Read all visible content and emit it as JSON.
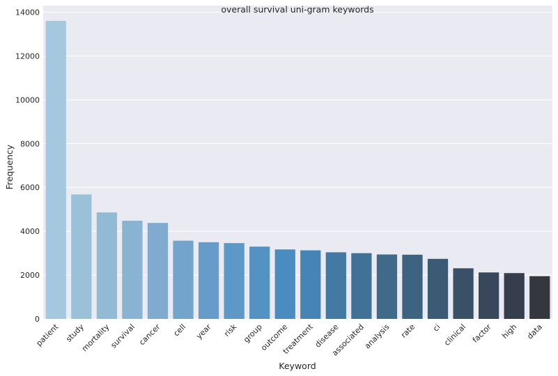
{
  "chart_data": {
    "type": "bar",
    "title": "overall survival uni-gram keywords",
    "xlabel": "Keyword",
    "ylabel": "Frequency",
    "ylim": [
      0,
      14300
    ],
    "yticks": [
      0,
      2000,
      4000,
      6000,
      8000,
      10000,
      12000,
      14000
    ],
    "grid": true,
    "categories": [
      "patient",
      "study",
      "mortality",
      "survival",
      "cancer",
      "cell",
      "year",
      "risk",
      "group",
      "outcome",
      "treatment",
      "disease",
      "associated",
      "analysis",
      "rate",
      "ci",
      "clinical",
      "factor",
      "high",
      "data"
    ],
    "values": [
      13600,
      5680,
      4860,
      4480,
      4380,
      3570,
      3500,
      3460,
      3300,
      3170,
      3130,
      3040,
      3000,
      2940,
      2930,
      2740,
      2310,
      2120,
      2090,
      1950
    ],
    "colors": [
      "#a6c8de",
      "#9bc1d8",
      "#92bad5",
      "#88b3d2",
      "#80aacf",
      "#73a5cc",
      "#679cca",
      "#5e98c6",
      "#5392c2",
      "#4a8cbf",
      "#4684b6",
      "#4479a4",
      "#427197",
      "#40698a",
      "#3e6380",
      "#3c5a74",
      "#3a5066",
      "#38475a",
      "#363e4d",
      "#34373d"
    ]
  }
}
